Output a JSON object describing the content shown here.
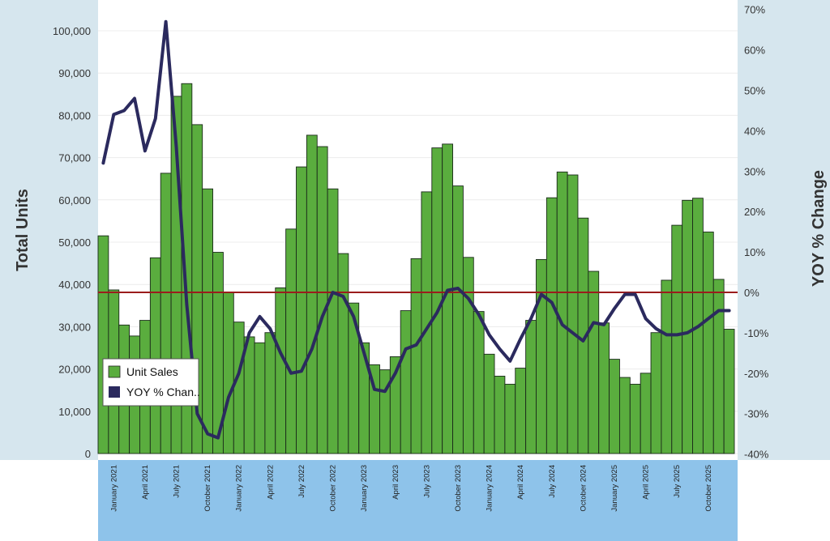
{
  "chart_data": {
    "type": "bar+line",
    "ylabel_left": "Total Units",
    "ylabel_right": "YOY % Change",
    "left_ylim": [
      0,
      105000
    ],
    "left_ticks": [
      "0",
      "10,000",
      "20,000",
      "30,000",
      "40,000",
      "50,000",
      "60,000",
      "70,000",
      "80,000",
      "90,000",
      "100,000"
    ],
    "right_ylim": [
      -40,
      70
    ],
    "right_ticks": [
      "-40%",
      "-30%",
      "-20%",
      "-10%",
      "0%",
      "10%",
      "20%",
      "30%",
      "40%",
      "50%",
      "60%",
      "70%"
    ],
    "x_tick_labels": [
      "January 2021",
      "April 2021",
      "July 2021",
      "October 2021",
      "January 2022",
      "April 2022",
      "July 2022",
      "October 2022",
      "January 2023",
      "April 2023",
      "July 2023",
      "October 2023",
      "January 2024",
      "April 2024",
      "July 2024",
      "October 2024",
      "January 2025",
      "April 2025",
      "July 2025",
      "October 2025"
    ],
    "reference_line_pct": 0,
    "colors": {
      "bars": "#5aad3e",
      "bar_edge": "#1a2a1a",
      "line": "#2b2a5e",
      "reference": "#9b1c1c",
      "side_panel": "#d6e6ee",
      "x_panel": "#8ec3ea"
    },
    "legend": [
      {
        "label": "Unit Sales",
        "color": "#5aad3e"
      },
      {
        "label": "YOY % Chan..",
        "color": "#2b2a5e"
      }
    ],
    "series": [
      {
        "name": "Unit Sales",
        "type": "bar",
        "values": [
          51500,
          38700,
          30400,
          27800,
          31500,
          46300,
          66300,
          84500,
          87500,
          77800,
          62600,
          47600,
          38100,
          31100,
          27600,
          26200,
          28600,
          39200,
          53100,
          67800,
          75300,
          72600,
          62600,
          47300,
          35600,
          26200,
          21000,
          19800,
          22900,
          33800,
          46100,
          61900,
          72300,
          73200,
          63300,
          46400,
          33600,
          23500,
          18300,
          16400,
          20200,
          31500,
          45900,
          60500,
          66600,
          65900,
          55700,
          43100,
          30900,
          22300,
          18000,
          16400,
          19000,
          28600,
          41000,
          54000,
          59900,
          60400,
          52400,
          41200,
          29400
        ]
      },
      {
        "name": "YOY % Change",
        "type": "line",
        "values": [
          32,
          44,
          45,
          48,
          35,
          43,
          67,
          36,
          -3,
          -30,
          -35,
          -36,
          -26,
          -20,
          -10,
          -6,
          -9,
          -15,
          -20,
          -19.5,
          -14,
          -6,
          0,
          -1,
          -6,
          -15,
          -24,
          -24.5,
          -20,
          -14,
          -13,
          -9,
          -5,
          0.5,
          1,
          -1.5,
          -5.5,
          -10.5,
          -14,
          -17,
          -11.5,
          -6.5,
          -0.5,
          -2.5,
          -8,
          -10,
          -12,
          -7.5,
          -8,
          -4,
          -0.5,
          -0.5,
          -6.5,
          -9,
          -10.5,
          -10.5,
          -10,
          -8.5,
          -6.5,
          -4.5,
          -4.5
        ]
      }
    ]
  }
}
